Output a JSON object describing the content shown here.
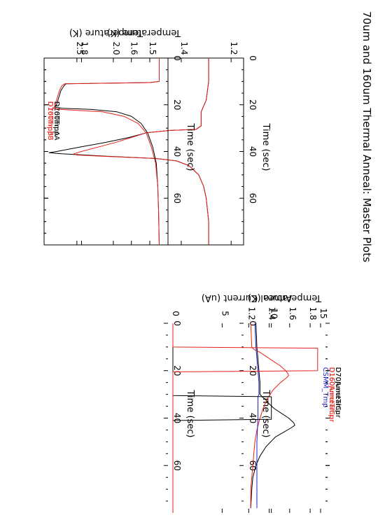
{
  "page_title": "70um and 160um Thermal Anneal: Master Plots",
  "colors": {
    "black": "#000000",
    "red": "#e8201a",
    "blue": "#2222cc"
  },
  "chart_data": [
    {
      "id": "p1",
      "type": "line",
      "xlabel": "Time (sec)",
      "ylabel": "Temperature (K)",
      "xlim": [
        0,
        80
      ],
      "ylim": [
        1.15,
        1.95
      ],
      "xticks": [
        0,
        20,
        40,
        60
      ],
      "yticks": [
        1.2,
        1.4,
        1.6,
        1.8
      ],
      "ytick_labels": [
        "1.2",
        "1.4",
        "1.6",
        "1.8"
      ],
      "legend_position": "top-right",
      "series": [
        {
          "name": "D70TmpA",
          "color": "#000000",
          "x": [
            0,
            10,
            18,
            23,
            29,
            30.5,
            31,
            32,
            34,
            36,
            38,
            40,
            40.5,
            41,
            42,
            43,
            44,
            46,
            50,
            55,
            60,
            70,
            80
          ],
          "y": [
            1.29,
            1.29,
            1.3,
            1.32,
            1.32,
            1.34,
            1.45,
            1.54,
            1.61,
            1.7,
            1.8,
            1.9,
            1.93,
            1.88,
            1.7,
            1.5,
            1.42,
            1.37,
            1.33,
            1.31,
            1.3,
            1.29,
            1.29
          ]
        },
        {
          "name": "D70TmpB",
          "color": "#e8201a",
          "x": [
            0,
            10,
            18,
            23,
            29,
            30.5,
            31,
            32,
            34,
            36,
            38,
            40,
            41,
            41.5,
            42,
            43,
            44,
            46,
            50,
            55,
            60,
            70,
            80
          ],
          "y": [
            1.29,
            1.29,
            1.3,
            1.32,
            1.32,
            1.34,
            1.45,
            1.54,
            1.6,
            1.66,
            1.73,
            1.8,
            1.83,
            1.82,
            1.72,
            1.5,
            1.42,
            1.37,
            1.33,
            1.31,
            1.3,
            1.29,
            1.29
          ]
        }
      ]
    },
    {
      "id": "p2",
      "type": "line",
      "xlabel": "Time (sec)",
      "ylabel": "Temperature (K)",
      "xlim": [
        0,
        80
      ],
      "ylim": [
        1.25,
        2.95
      ],
      "xticks": [
        0,
        20,
        40,
        60
      ],
      "yticks": [
        1.5,
        2.0,
        2.5
      ],
      "ytick_labels": [
        "1.5",
        "2.0",
        "2.5"
      ],
      "legend_position": "top-right",
      "series": [
        {
          "name": "D160TmpA",
          "color": "#000000",
          "x": [
            0,
            10,
            10.5,
            11,
            12,
            14,
            16,
            18,
            20,
            21,
            21.5,
            22,
            23,
            25,
            28,
            32,
            38,
            45,
            55,
            65,
            80
          ],
          "y": [
            1.37,
            1.37,
            1.5,
            2.65,
            2.68,
            2.72,
            2.74,
            2.76,
            2.78,
            2.8,
            2.7,
            2.3,
            1.95,
            1.75,
            1.62,
            1.53,
            1.46,
            1.41,
            1.39,
            1.38,
            1.37
          ]
        },
        {
          "name": "D160TmpB",
          "color": "#e8201a",
          "x": [
            0,
            10,
            10.5,
            11,
            12,
            14,
            16,
            18,
            20,
            21.5,
            22,
            23,
            25,
            28,
            32,
            38,
            45,
            55,
            65,
            80
          ],
          "y": [
            1.37,
            1.37,
            1.5,
            2.67,
            2.71,
            2.74,
            2.76,
            2.78,
            2.8,
            2.82,
            2.72,
            2.15,
            1.85,
            1.66,
            1.55,
            1.48,
            1.42,
            1.39,
            1.38,
            1.37
          ]
        }
      ]
    },
    {
      "id": "p3",
      "type": "line",
      "xlabel": "Time (sec)",
      "ylabel": "Temperature (K)",
      "xlim": [
        0,
        80
      ],
      "ylim": [
        1.15,
        1.95
      ],
      "xticks": [
        0,
        20,
        40,
        60
      ],
      "yticks": [
        1.2,
        1.4,
        1.6,
        1.8
      ],
      "ytick_labels": [
        "1.2",
        "1.4",
        "1.6",
        "1.8"
      ],
      "legend_position": "top-right",
      "series": [
        {
          "name": "D70JunctTmp",
          "color": "#000000",
          "x": [
            0,
            10,
            15,
            20,
            25,
            28,
            30,
            31,
            32,
            34,
            36,
            38,
            40,
            42,
            43,
            44,
            46,
            48,
            52,
            56,
            60,
            65,
            70,
            78
          ],
          "y": [
            1.27,
            1.28,
            1.29,
            1.3,
            1.31,
            1.31,
            1.31,
            1.33,
            1.36,
            1.4,
            1.45,
            1.52,
            1.59,
            1.64,
            1.65,
            1.62,
            1.54,
            1.46,
            1.37,
            1.31,
            1.27,
            1.24,
            1.23,
            1.22
          ]
        },
        {
          "name": "D160JunctTmp",
          "color": "#e8201a",
          "x": [
            0,
            10,
            11,
            12,
            14,
            16,
            18,
            20,
            21,
            22,
            23,
            25,
            28,
            32,
            36,
            40,
            45,
            50,
            55,
            60,
            65,
            70,
            78
          ],
          "y": [
            1.22,
            1.23,
            1.25,
            1.3,
            1.37,
            1.44,
            1.51,
            1.56,
            1.58,
            1.59,
            1.57,
            1.51,
            1.44,
            1.38,
            1.34,
            1.31,
            1.28,
            1.26,
            1.25,
            1.24,
            1.23,
            1.22,
            1.22
          ]
        },
        {
          "name": "CSMM_Tmp",
          "color": "#2222cc",
          "x": [
            0,
            10,
            15,
            20,
            25,
            30,
            31,
            32,
            36,
            40,
            50,
            60,
            70,
            78
          ],
          "y": [
            1.26,
            1.27,
            1.28,
            1.29,
            1.3,
            1.3,
            1.29,
            1.29,
            1.29,
            1.29,
            1.28,
            1.28,
            1.28,
            1.28
          ]
        }
      ]
    },
    {
      "id": "p4",
      "type": "line",
      "xlabel": "Time (sec)",
      "ylabel": "Anneal Current (uA)",
      "xlim": [
        0,
        80
      ],
      "ylim": [
        -0.5,
        15.5
      ],
      "xticks": [
        0,
        20,
        40,
        60
      ],
      "yticks": [
        0,
        5,
        10,
        15
      ],
      "ytick_labels": [
        "0",
        "5",
        "10",
        "15"
      ],
      "legend_position": "top-right",
      "series": [
        {
          "name": "D70AnnealCur",
          "color": "#000000",
          "x": [
            0,
            30.5,
            31,
            32,
            40.5,
            41,
            80
          ],
          "y": [
            0,
            0,
            10.0,
            10.0,
            10.0,
            0,
            0
          ]
        },
        {
          "name": "D160AnnealCur",
          "color": "#e8201a",
          "x": [
            0,
            10,
            10.5,
            20,
            20.5,
            80
          ],
          "y": [
            0,
            0,
            14.7,
            14.7,
            0,
            0
          ]
        }
      ]
    }
  ]
}
